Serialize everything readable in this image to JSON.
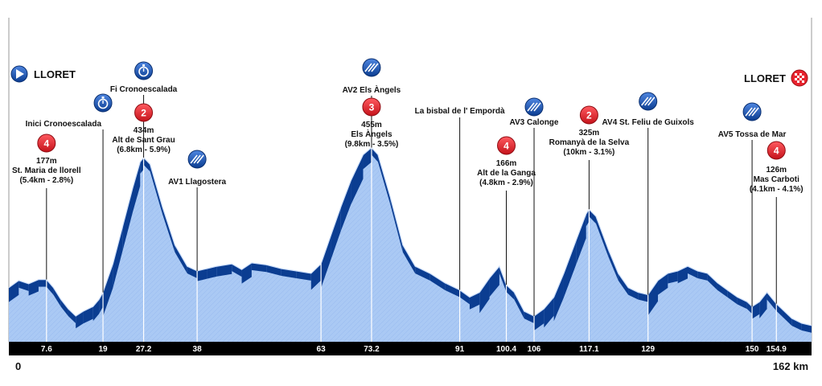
{
  "chart_data": {
    "type": "area",
    "title": "",
    "xlabel": "",
    "ylabel": "",
    "x_unit": "km",
    "xlim": [
      0,
      162
    ],
    "colors": {
      "fill": "#aac9f4",
      "slope": "#0b3d91",
      "ridge": "#cfe0fb",
      "bar": "#000000",
      "cat": "#e8232e"
    },
    "profile": [
      [
        0,
        160
      ],
      [
        2,
        175
      ],
      [
        4,
        168
      ],
      [
        6,
        177
      ],
      [
        7.6,
        177
      ],
      [
        9,
        160
      ],
      [
        10.5,
        135
      ],
      [
        12,
        115
      ],
      [
        13.5,
        100
      ],
      [
        15,
        110
      ],
      [
        17,
        120
      ],
      [
        18.2,
        135
      ],
      [
        19,
        150
      ],
      [
        21,
        210
      ],
      [
        23,
        290
      ],
      [
        25,
        370
      ],
      [
        26.5,
        425
      ],
      [
        27.2,
        434
      ],
      [
        28.5,
        420
      ],
      [
        31,
        330
      ],
      [
        33.5,
        250
      ],
      [
        36,
        205
      ],
      [
        38,
        195
      ],
      [
        40,
        200
      ],
      [
        42,
        205
      ],
      [
        45,
        210
      ],
      [
        47,
        198
      ],
      [
        49,
        212
      ],
      [
        52,
        208
      ],
      [
        55,
        200
      ],
      [
        58,
        195
      ],
      [
        61,
        190
      ],
      [
        63,
        210
      ],
      [
        65,
        270
      ],
      [
        67,
        330
      ],
      [
        69,
        385
      ],
      [
        71.5,
        440
      ],
      [
        73.2,
        455
      ],
      [
        74.5,
        440
      ],
      [
        77,
        350
      ],
      [
        79.5,
        250
      ],
      [
        82,
        205
      ],
      [
        85,
        190
      ],
      [
        88,
        170
      ],
      [
        91,
        155
      ],
      [
        93,
        140
      ],
      [
        95,
        150
      ],
      [
        97,
        180
      ],
      [
        99,
        205
      ],
      [
        100.4,
        166
      ],
      [
        102,
        150
      ],
      [
        104,
        110
      ],
      [
        106,
        100
      ],
      [
        108,
        115
      ],
      [
        110,
        140
      ],
      [
        112,
        190
      ],
      [
        114.5,
        260
      ],
      [
        116.5,
        315
      ],
      [
        117.1,
        325
      ],
      [
        118.5,
        310
      ],
      [
        121,
        240
      ],
      [
        123,
        190
      ],
      [
        125,
        160
      ],
      [
        127,
        150
      ],
      [
        129,
        145
      ],
      [
        131,
        175
      ],
      [
        133,
        190
      ],
      [
        135,
        195
      ],
      [
        137,
        205
      ],
      [
        139,
        195
      ],
      [
        141,
        190
      ],
      [
        143,
        170
      ],
      [
        145,
        155
      ],
      [
        147,
        140
      ],
      [
        149,
        130
      ],
      [
        150,
        120
      ],
      [
        151.5,
        130
      ],
      [
        153,
        150
      ],
      [
        154.9,
        126
      ],
      [
        156,
        115
      ],
      [
        158,
        95
      ],
      [
        160,
        85
      ],
      [
        162,
        80
      ]
    ],
    "ticks": [
      {
        "km": 7.6,
        "label": "7.6"
      },
      {
        "km": 19,
        "label": "19"
      },
      {
        "km": 27.2,
        "label": "27.2"
      },
      {
        "km": 38,
        "label": "38"
      },
      {
        "km": 63,
        "label": "63"
      },
      {
        "km": 73.2,
        "label": "73.2"
      },
      {
        "km": 91,
        "label": "91"
      },
      {
        "km": 100.4,
        "label": "100.4"
      },
      {
        "km": 106,
        "label": "106"
      },
      {
        "km": 117.1,
        "label": "117.1"
      },
      {
        "km": 129,
        "label": "129"
      },
      {
        "km": 150,
        "label": "150"
      },
      {
        "km": 154.9,
        "label": "154.9"
      }
    ],
    "start_label": "0",
    "end_label": "162 km",
    "places": {
      "start": "LLORET",
      "finish": "LLORET"
    },
    "annotations": [
      {
        "km": 7.6,
        "kind": "climb",
        "category": "4",
        "lines": [
          "177m",
          "St. Maria de llorell",
          "(5.4km - 2.8%)"
        ]
      },
      {
        "km": 19,
        "kind": "timing",
        "icon": "stopwatch-icon",
        "lines": [
          "Inici Cronoescalada"
        ]
      },
      {
        "km": 27.2,
        "kind": "timing",
        "icon": "stopwatch-icon",
        "lines": [
          "Fi Cronoescalada"
        ]
      },
      {
        "km": 27.2,
        "kind": "climb",
        "category": "2",
        "lines": [
          "434m",
          "Alt de Sant Grau",
          "(6.8km - 5.9%)"
        ]
      },
      {
        "km": 38,
        "kind": "sprint",
        "icon": "intermediate-sprint-icon",
        "lines": [
          "AV1 Llagostera"
        ]
      },
      {
        "km": 73.2,
        "kind": "sprint",
        "icon": "intermediate-sprint-icon",
        "lines": [
          "AV2 Els Àngels"
        ]
      },
      {
        "km": 73.2,
        "kind": "climb",
        "category": "3",
        "lines": [
          "455m",
          "Els Àngels",
          "(9.8km - 3.5%)"
        ]
      },
      {
        "km": 91,
        "kind": "place",
        "lines": [
          "La bisbal de l' Empordà"
        ]
      },
      {
        "km": 100.4,
        "kind": "climb",
        "category": "4",
        "lines": [
          "166m",
          "Alt de la Ganga",
          "(4.8km - 2.9%)"
        ]
      },
      {
        "km": 106,
        "kind": "sprint",
        "icon": "intermediate-sprint-icon",
        "lines": [
          "AV3 Calonge"
        ]
      },
      {
        "km": 117.1,
        "kind": "climb",
        "category": "2",
        "lines": [
          "325m",
          "Romanyà de la Selva",
          "(10km - 3.1%)"
        ]
      },
      {
        "km": 129,
        "kind": "sprint",
        "icon": "intermediate-sprint-icon",
        "lines": [
          "AV4 St. Feliu de Guixols"
        ]
      },
      {
        "km": 150,
        "kind": "sprint",
        "icon": "intermediate-sprint-icon",
        "lines": [
          "AV5 Tossa de Mar"
        ]
      },
      {
        "km": 154.9,
        "kind": "climb",
        "category": "4",
        "lines": [
          "126m",
          "Mas Carboti",
          "(4.1km - 4.1%)"
        ]
      }
    ]
  }
}
